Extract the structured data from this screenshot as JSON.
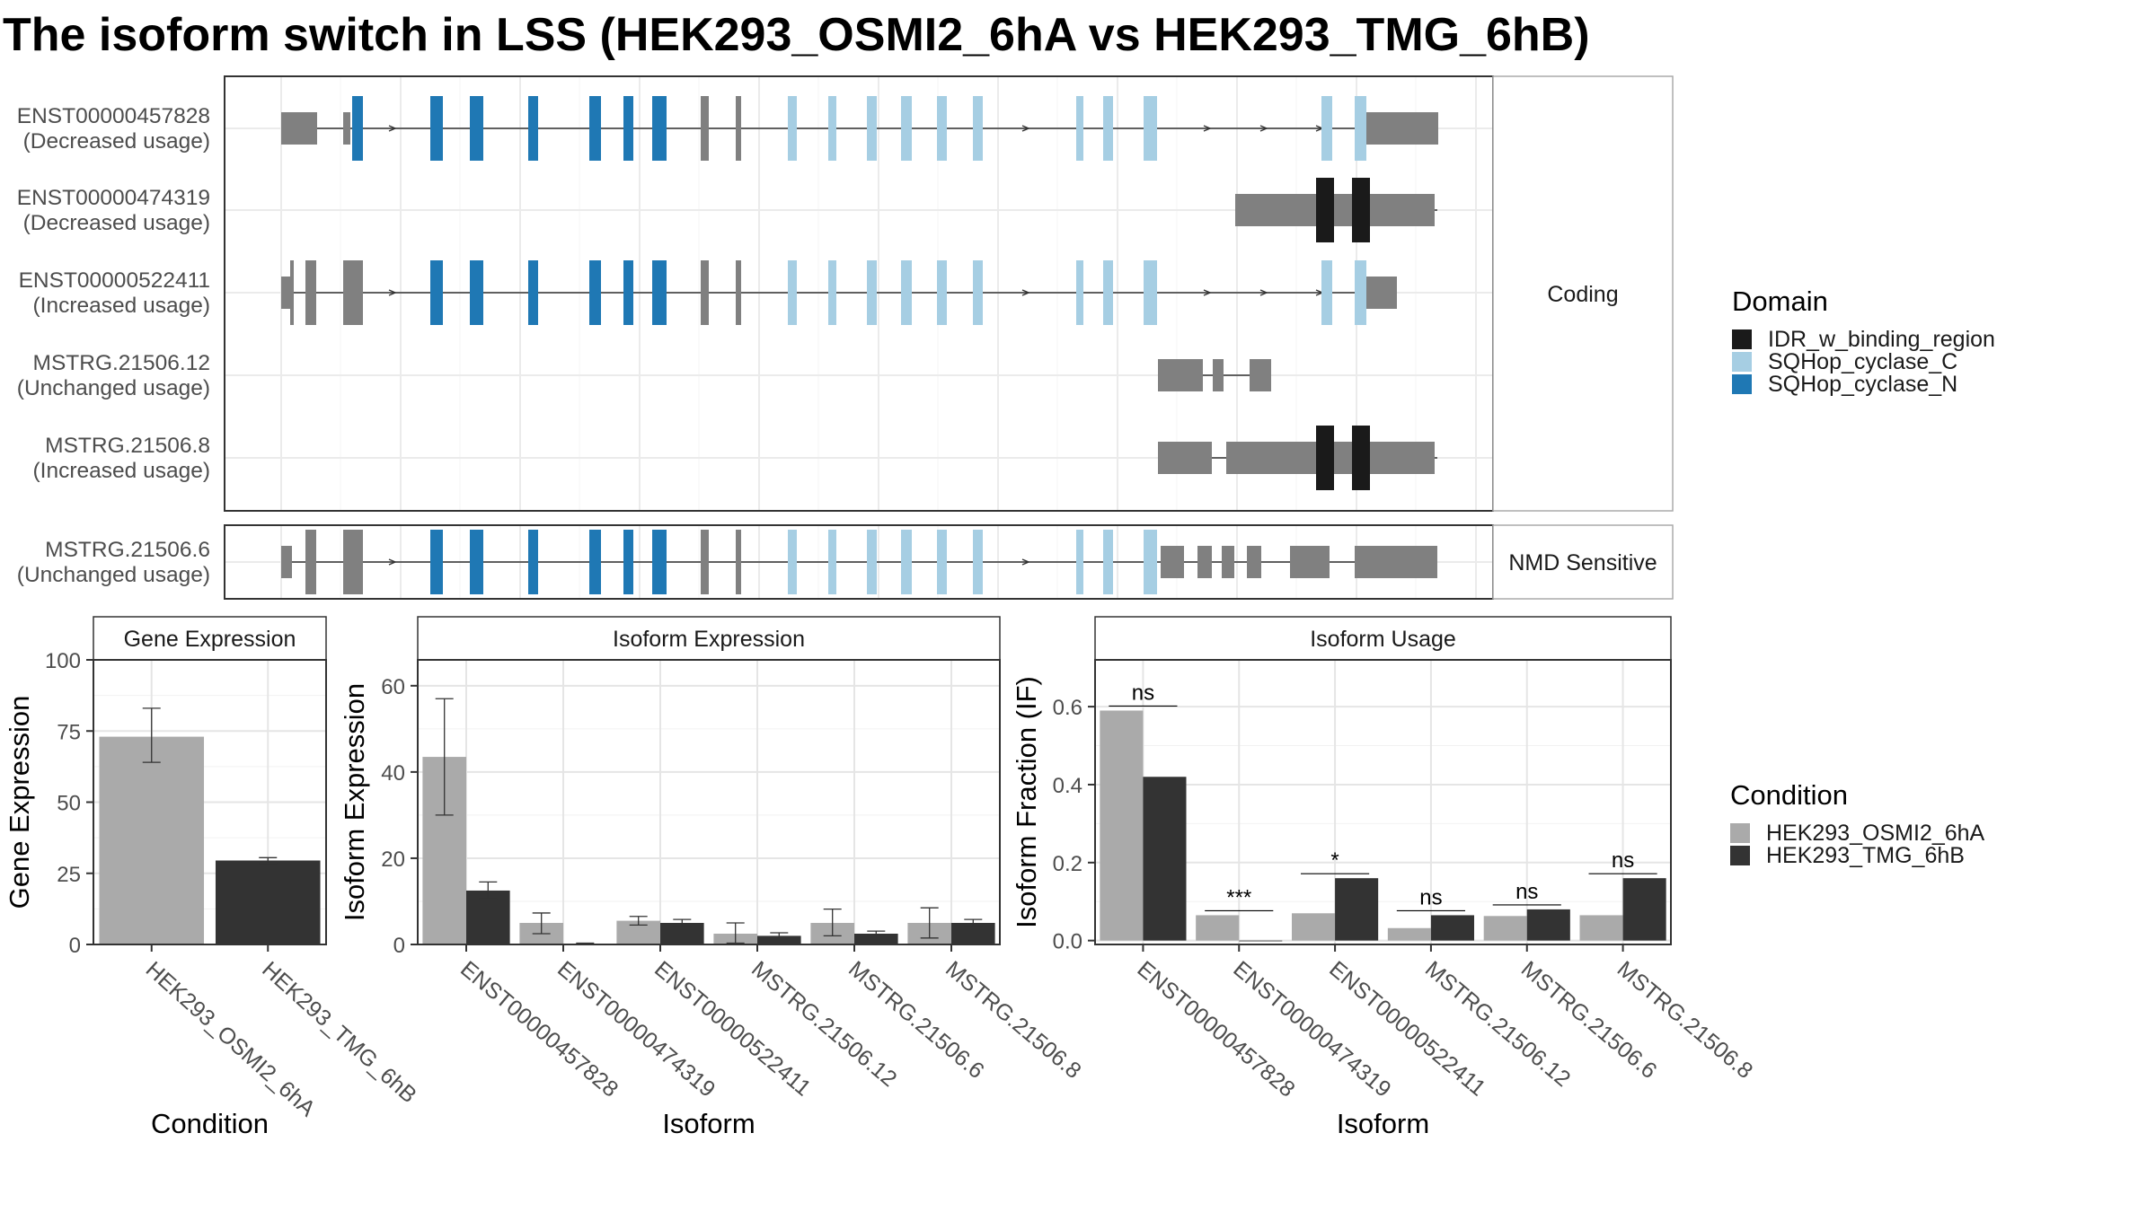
{
  "title": "The isoform switch in LSS (HEK293_OSMI2_6hA vs HEK293_TMG_6hB)",
  "colors": {
    "exon_noncoding": "#808080",
    "IDR_w_binding_region": "#1a1a1a",
    "SQHop_cyclase_C": "#a6cee3",
    "SQHop_cyclase_N": "#1f78b4",
    "cond_A": "#aaaaaa",
    "cond_B": "#333333"
  },
  "transcript_panel": {
    "groups": [
      {
        "label": "Coding",
        "rows": [
          {
            "id": "ENST00000457828",
            "usage": "(Decreased usage)"
          },
          {
            "id": "ENST00000474319",
            "usage": "(Decreased usage)"
          },
          {
            "id": "ENST00000522411",
            "usage": "(Increased usage)"
          },
          {
            "id": "MSTRG.21506.12",
            "usage": "(Unchanged usage)"
          },
          {
            "id": "MSTRG.21506.8",
            "usage": "(Increased usage)"
          }
        ]
      },
      {
        "label": "NMD Sensitive",
        "rows": [
          {
            "id": "MSTRG.21506.6",
            "usage": "(Unchanged usage)"
          }
        ]
      }
    ]
  },
  "legend_domain": {
    "title": "Domain",
    "items": [
      {
        "label": "IDR_w_binding_region",
        "color_key": "IDR_w_binding_region"
      },
      {
        "label": "SQHop_cyclase_C",
        "color_key": "SQHop_cyclase_C"
      },
      {
        "label": "SQHop_cyclase_N",
        "color_key": "SQHop_cyclase_N"
      }
    ]
  },
  "legend_condition": {
    "title": "Condition",
    "items": [
      {
        "label": "HEK293_OSMI2_6hA",
        "color_key": "cond_A"
      },
      {
        "label": "HEK293_TMG_6hB",
        "color_key": "cond_B"
      }
    ]
  },
  "chart_data": [
    {
      "type": "bar",
      "title": "Gene Expression",
      "xlabel": "Condition",
      "ylabel": "Gene Expression",
      "ylim": [
        0,
        100
      ],
      "yticks": [
        0,
        25,
        50,
        75,
        100
      ],
      "categories": [
        "HEK293_OSMI2_6hA",
        "HEK293_TMG_6hB"
      ],
      "series": [
        {
          "values": [
            73,
            29.5
          ],
          "err_low": [
            64,
            28.5
          ],
          "err_high": [
            83,
            30.5
          ]
        }
      ]
    },
    {
      "type": "bar",
      "title": "Isoform Expression",
      "xlabel": "Isoform",
      "ylabel": "Isoform Expression",
      "ylim": [
        0,
        66
      ],
      "yticks": [
        0,
        20,
        40,
        60
      ],
      "categories": [
        "ENST00000457828",
        "ENST00000474319",
        "ENST00000522411",
        "MSTRG.21506.12",
        "MSTRG.21506.6",
        "MSTRG.21506.8"
      ],
      "series": [
        {
          "name": "HEK293_OSMI2_6hA",
          "values": [
            43.5,
            5,
            5.5,
            2.5,
            5,
            5
          ],
          "err_low": [
            30,
            2.5,
            4.5,
            0.3,
            2,
            1.5
          ],
          "err_high": [
            57,
            7.3,
            6.5,
            5,
            8.2,
            8.5
          ]
        },
        {
          "name": "HEK293_TMG_6hB",
          "values": [
            12.5,
            0.2,
            5,
            2,
            2.5,
            5
          ],
          "err_low": [
            10.5,
            0.1,
            4.2,
            1.3,
            1.9,
            4.2
          ],
          "err_high": [
            14.5,
            0.3,
            5.8,
            2.7,
            3.1,
            5.8
          ]
        }
      ]
    },
    {
      "type": "bar",
      "title": "Isoform Usage",
      "xlabel": "Isoform",
      "ylabel": "Isoform Fraction (IF)",
      "ylim": [
        -0.01,
        0.72
      ],
      "yticks": [
        "0.0",
        "0.2",
        "0.4",
        "0.6"
      ],
      "categories": [
        "ENST00000457828",
        "ENST00000474319",
        "ENST00000522411",
        "MSTRG.21506.12",
        "MSTRG.21506.6",
        "MSTRG.21506.8"
      ],
      "series": [
        {
          "name": "HEK293_OSMI2_6hA",
          "values": [
            0.59,
            0.065,
            0.07,
            0.032,
            0.063,
            0.065
          ]
        },
        {
          "name": "HEK293_TMG_6hB",
          "values": [
            0.42,
            0.0,
            0.16,
            0.065,
            0.08,
            0.16
          ]
        }
      ],
      "significance": [
        "ns",
        "***",
        "*",
        "ns",
        "ns",
        "ns"
      ]
    }
  ]
}
